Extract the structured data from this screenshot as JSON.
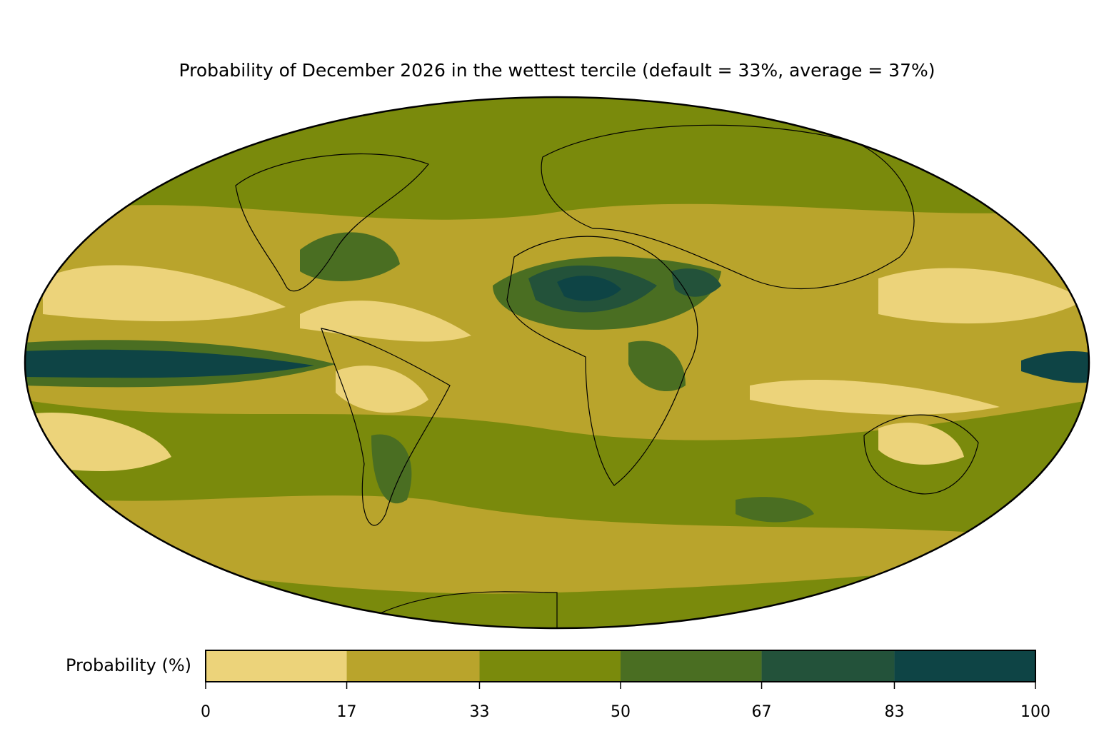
{
  "title": "Probability of December 2026 in the wettest tercile (default = 33%, average = 37%)",
  "colorbar": {
    "label": "Probability (%)",
    "ticks": [
      0,
      17,
      33,
      50,
      67,
      83,
      100
    ],
    "colors": [
      "#ecd37a",
      "#b9a42c",
      "#7a8a0c",
      "#4a6e22",
      "#23523a",
      "#0e4445"
    ]
  }
}
